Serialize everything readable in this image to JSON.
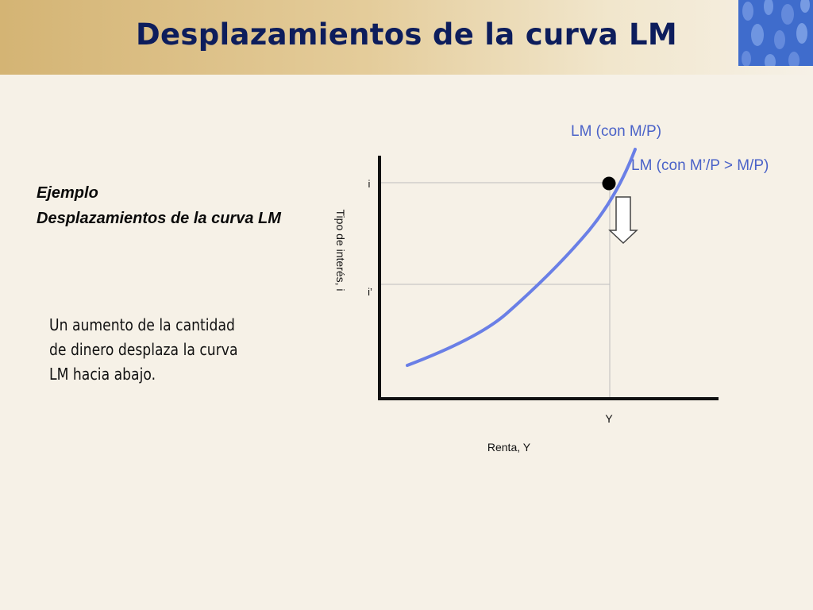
{
  "slide": {
    "title": "Desplazamientos de la curva LM",
    "side_heading_1": "Ejemplo",
    "side_heading_2": "Desplazamientos de la curva LM",
    "explanation": "Un aumento de la cantidad de dinero desplaza la curva LM hacia abajo."
  },
  "diagram": {
    "y_axis_label": "Tipo de interés, i",
    "x_axis_label": "Renta, Y",
    "tick_i": "i",
    "tick_i_prime": "i’",
    "tick_Y": "Y",
    "curve_label_1": "LM (con M/P)",
    "curve_label_2": "LM (con M’/P > M/P)",
    "curve_color": "#6a7fe6",
    "label_color": "#4a62c8",
    "arrow_direction": "down"
  }
}
